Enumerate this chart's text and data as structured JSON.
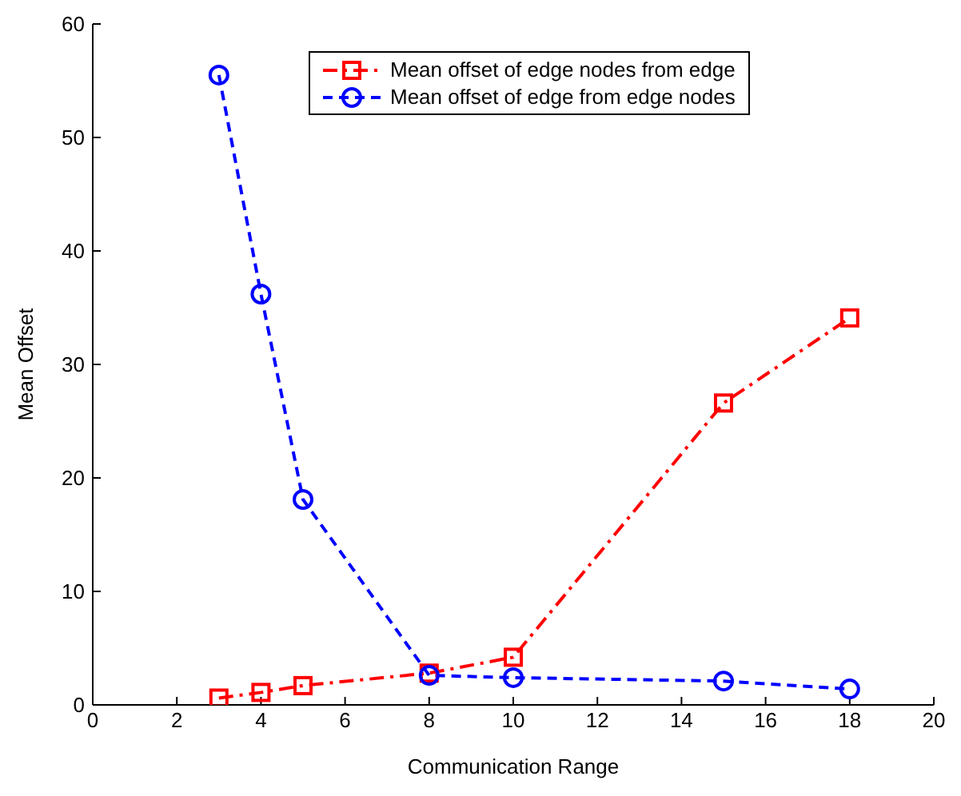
{
  "chart_data": {
    "type": "line",
    "xlabel": "Communication Range",
    "ylabel": "Mean Offset",
    "x": [
      3,
      4,
      5,
      8,
      10,
      15,
      18
    ],
    "series": [
      {
        "name": "Mean offset of edge nodes from edge",
        "color": "#ff0000",
        "values": [
          0.6,
          1.1,
          1.7,
          2.8,
          4.2,
          26.6,
          34.1
        ],
        "marker": "square",
        "line_style": "dashdot"
      },
      {
        "name": "Mean offset of edge from edge nodes",
        "color": "#0000ff",
        "values": [
          55.5,
          36.2,
          18.1,
          2.6,
          2.4,
          2.1,
          1.4
        ],
        "marker": "circle",
        "line_style": "dashed"
      }
    ],
    "xlim": [
      0,
      20
    ],
    "xticks": [
      0,
      2,
      4,
      6,
      8,
      10,
      12,
      14,
      16,
      18,
      20
    ],
    "ylim": [
      0,
      60
    ],
    "yticks": [
      0,
      10,
      20,
      30,
      40,
      50,
      60
    ],
    "grid": false,
    "legend": "top"
  }
}
